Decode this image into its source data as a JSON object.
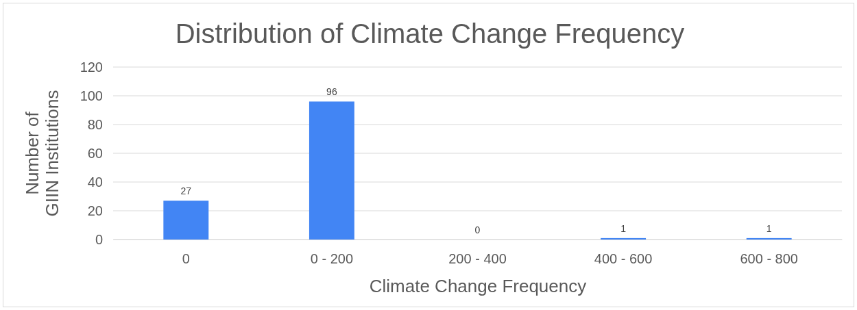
{
  "chart_data": {
    "type": "bar",
    "title": "Distribution of Climate Change Frequency",
    "xlabel": "Climate Change Frequency",
    "ylabel": "Number of\nGIIN Institutions",
    "categories": [
      "0",
      "0 - 200",
      "200 - 400",
      "400 - 600",
      "600 - 800"
    ],
    "values": [
      27,
      96,
      0,
      1,
      1
    ],
    "color": "#4285f4",
    "ylim": [
      0,
      120
    ],
    "yticks": [
      0,
      20,
      40,
      60,
      80,
      100,
      120
    ],
    "grid": "y",
    "data_labels": true
  }
}
